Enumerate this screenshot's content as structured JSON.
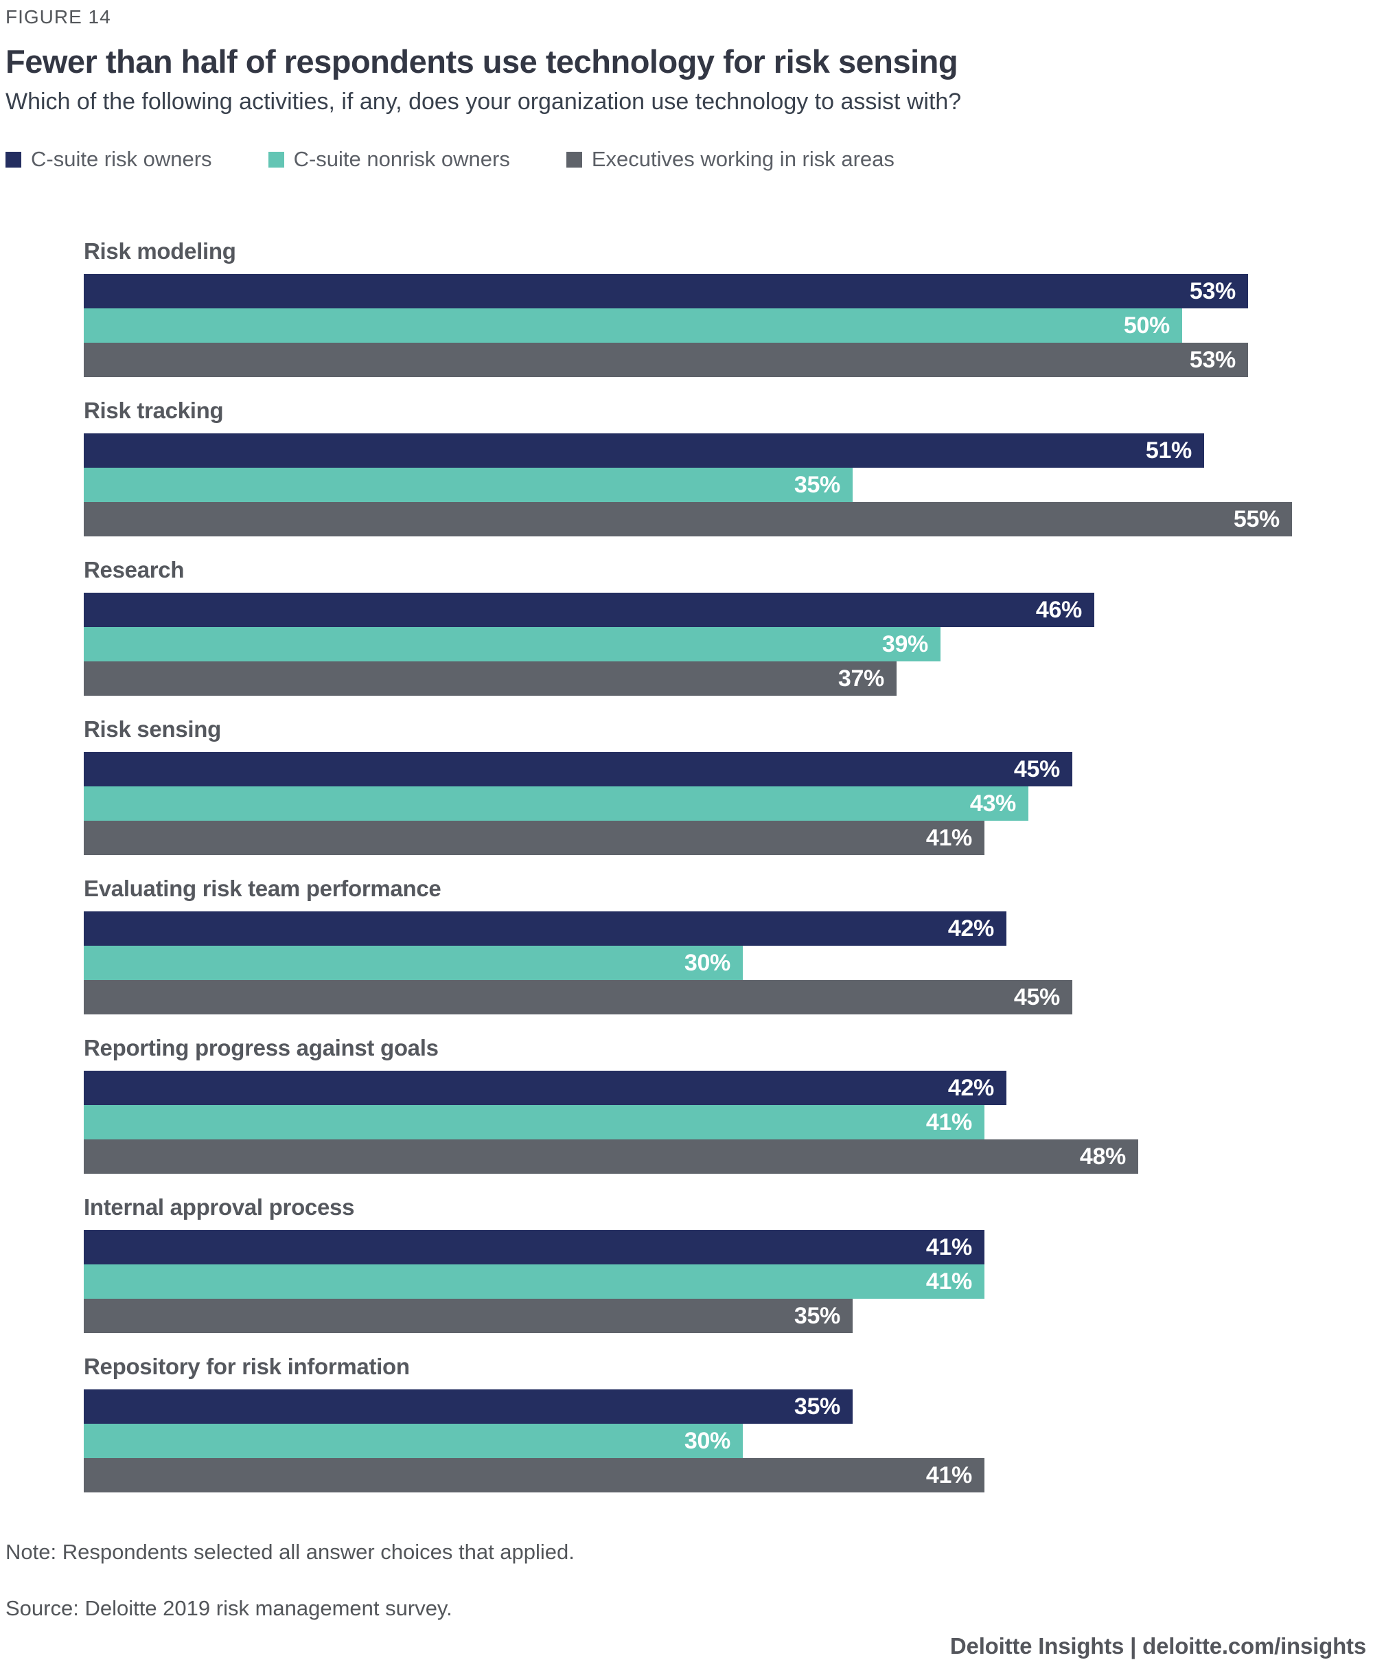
{
  "figure_label": "FIGURE 14",
  "title": "Fewer than half of respondents use technology for risk sensing",
  "subtitle": "Which of the following activities, if any, does your organization use technology to assist with?",
  "legend": [
    {
      "label": "C-suite risk owners",
      "color": "#242e60"
    },
    {
      "label": "C-suite nonrisk owners",
      "color": "#63c5b4"
    },
    {
      "label": "Executives working in risk areas",
      "color": "#5f636a"
    }
  ],
  "chart_data": {
    "type": "bar",
    "orientation": "horizontal",
    "unit": "%",
    "xlim": [
      0,
      55
    ],
    "grid": false,
    "legend_position": "top",
    "categories": [
      "Risk modeling",
      "Risk tracking",
      "Research",
      "Risk sensing",
      "Evaluating risk team performance",
      "Reporting progress against goals",
      "Internal approval process",
      "Repository for risk information"
    ],
    "series": [
      {
        "name": "C-suite risk owners",
        "color": "#242e60",
        "values": [
          53,
          51,
          46,
          45,
          42,
          42,
          41,
          35
        ]
      },
      {
        "name": "C-suite nonrisk owners",
        "color": "#63c5b4",
        "values": [
          50,
          35,
          39,
          43,
          30,
          41,
          41,
          30
        ]
      },
      {
        "name": "Executives working in risk areas",
        "color": "#5f636a",
        "values": [
          53,
          55,
          37,
          41,
          45,
          48,
          35,
          41
        ]
      }
    ],
    "value_labels": "inside-end, white"
  },
  "footer": {
    "note": "Note: Respondents selected all answer choices that applied.",
    "source": "Source: Deloitte 2019 risk management survey.",
    "brand": "Deloitte Insights | deloitte.com/insights"
  }
}
